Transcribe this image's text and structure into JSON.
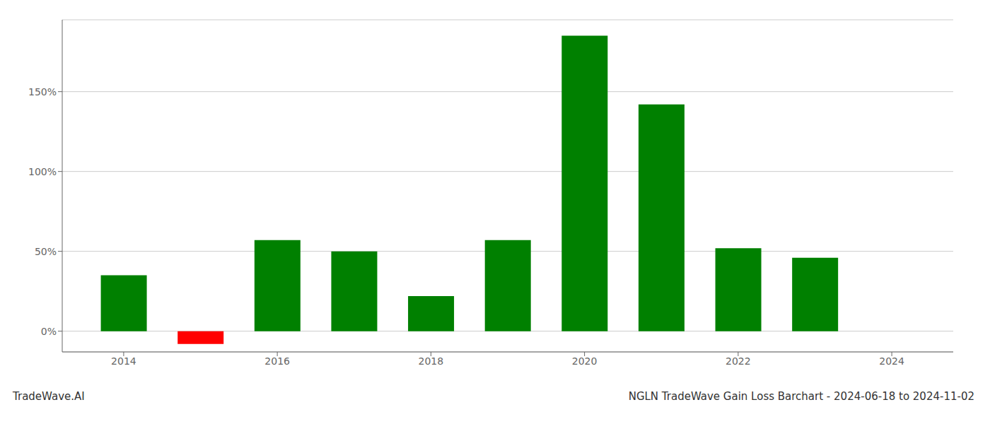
{
  "chart_data": {
    "type": "bar",
    "title": "NGLN TradeWave Gain Loss Barchart - 2024-06-18 to 2024-11-02",
    "annotations": [
      "TradeWave.AI"
    ],
    "x": [
      2014,
      2015,
      2016,
      2017,
      2018,
      2019,
      2020,
      2021,
      2022,
      2023
    ],
    "values": [
      0.35,
      -0.08,
      0.57,
      0.5,
      0.22,
      0.57,
      1.85,
      1.42,
      0.52,
      0.46
    ],
    "colors": [
      "#008000",
      "#ff0000",
      "#008000",
      "#008000",
      "#008000",
      "#008000",
      "#008000",
      "#008000",
      "#008000",
      "#008000"
    ],
    "xlim": [
      2013.2,
      2024.8
    ],
    "xticks": [
      2014,
      2016,
      2018,
      2020,
      2022,
      2024
    ],
    "ylim": [
      -0.13,
      1.95
    ],
    "yticks": [
      {
        "value": 0,
        "label": "0%"
      },
      {
        "value": 0.5,
        "label": "50%"
      },
      {
        "value": 1.0,
        "label": "100%"
      },
      {
        "value": 1.5,
        "label": "150%"
      }
    ],
    "grid": true
  }
}
